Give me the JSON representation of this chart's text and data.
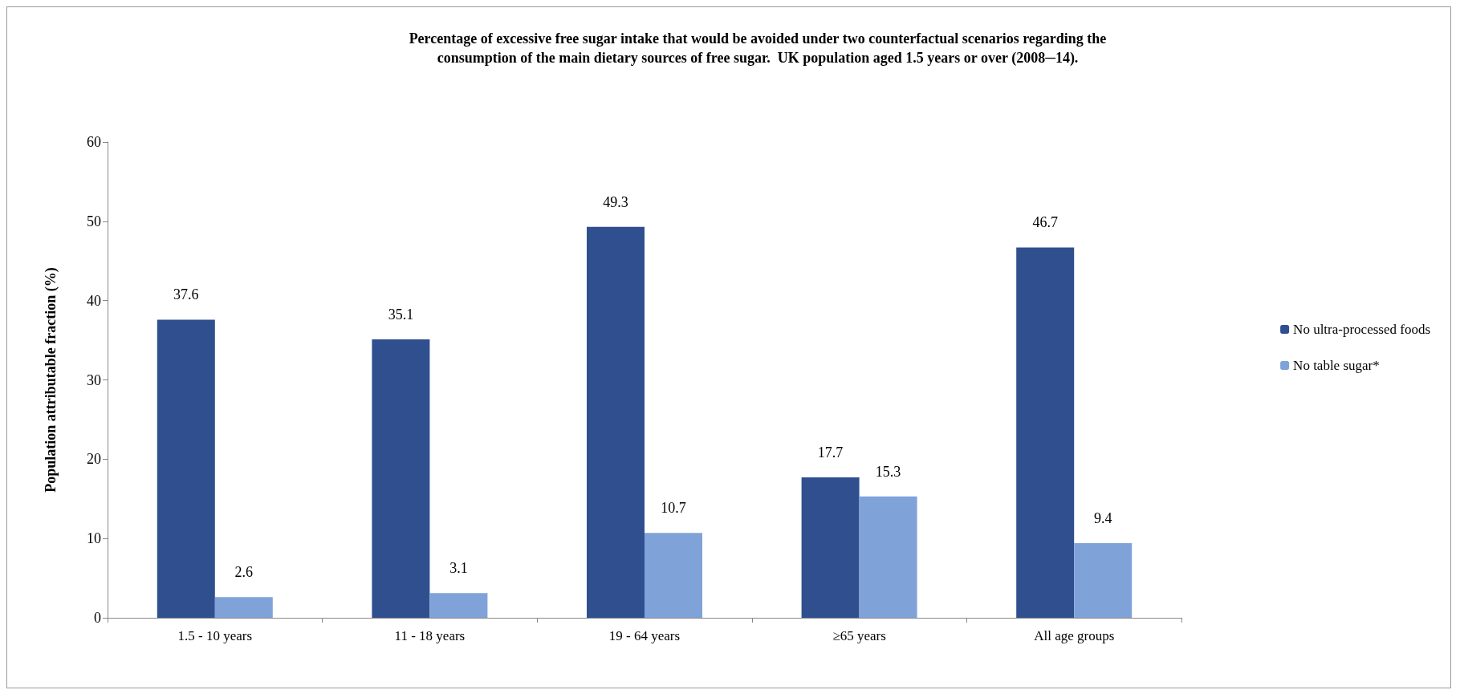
{
  "chart_data": {
    "type": "bar",
    "title": "Percentage of excessive free sugar intake that would be avoided under two counterfactual scenarios regarding the\nconsumption of the main dietary sources of free sugar.  UK population aged 1.5 years or over (2008─14).",
    "ylabel": "Population attributable fraction (%)",
    "categories": [
      "1.5 - 10 years",
      "11 - 18 years",
      "19 - 64 years",
      "≥65 years",
      "All age groups"
    ],
    "series": [
      {
        "name": "No ultra-processed foods",
        "color": "#2f4f8f",
        "values": [
          37.6,
          35.1,
          49.3,
          17.7,
          46.7
        ]
      },
      {
        "name": "No table sugar*",
        "color": "#7fa3d9",
        "values": [
          2.6,
          3.1,
          10.7,
          15.3,
          9.4
        ]
      }
    ],
    "ylim": [
      0,
      60
    ],
    "yticks": [
      0,
      10,
      20,
      30,
      40,
      50,
      60
    ],
    "grid": false,
    "legend": "right",
    "data_labels": true
  }
}
